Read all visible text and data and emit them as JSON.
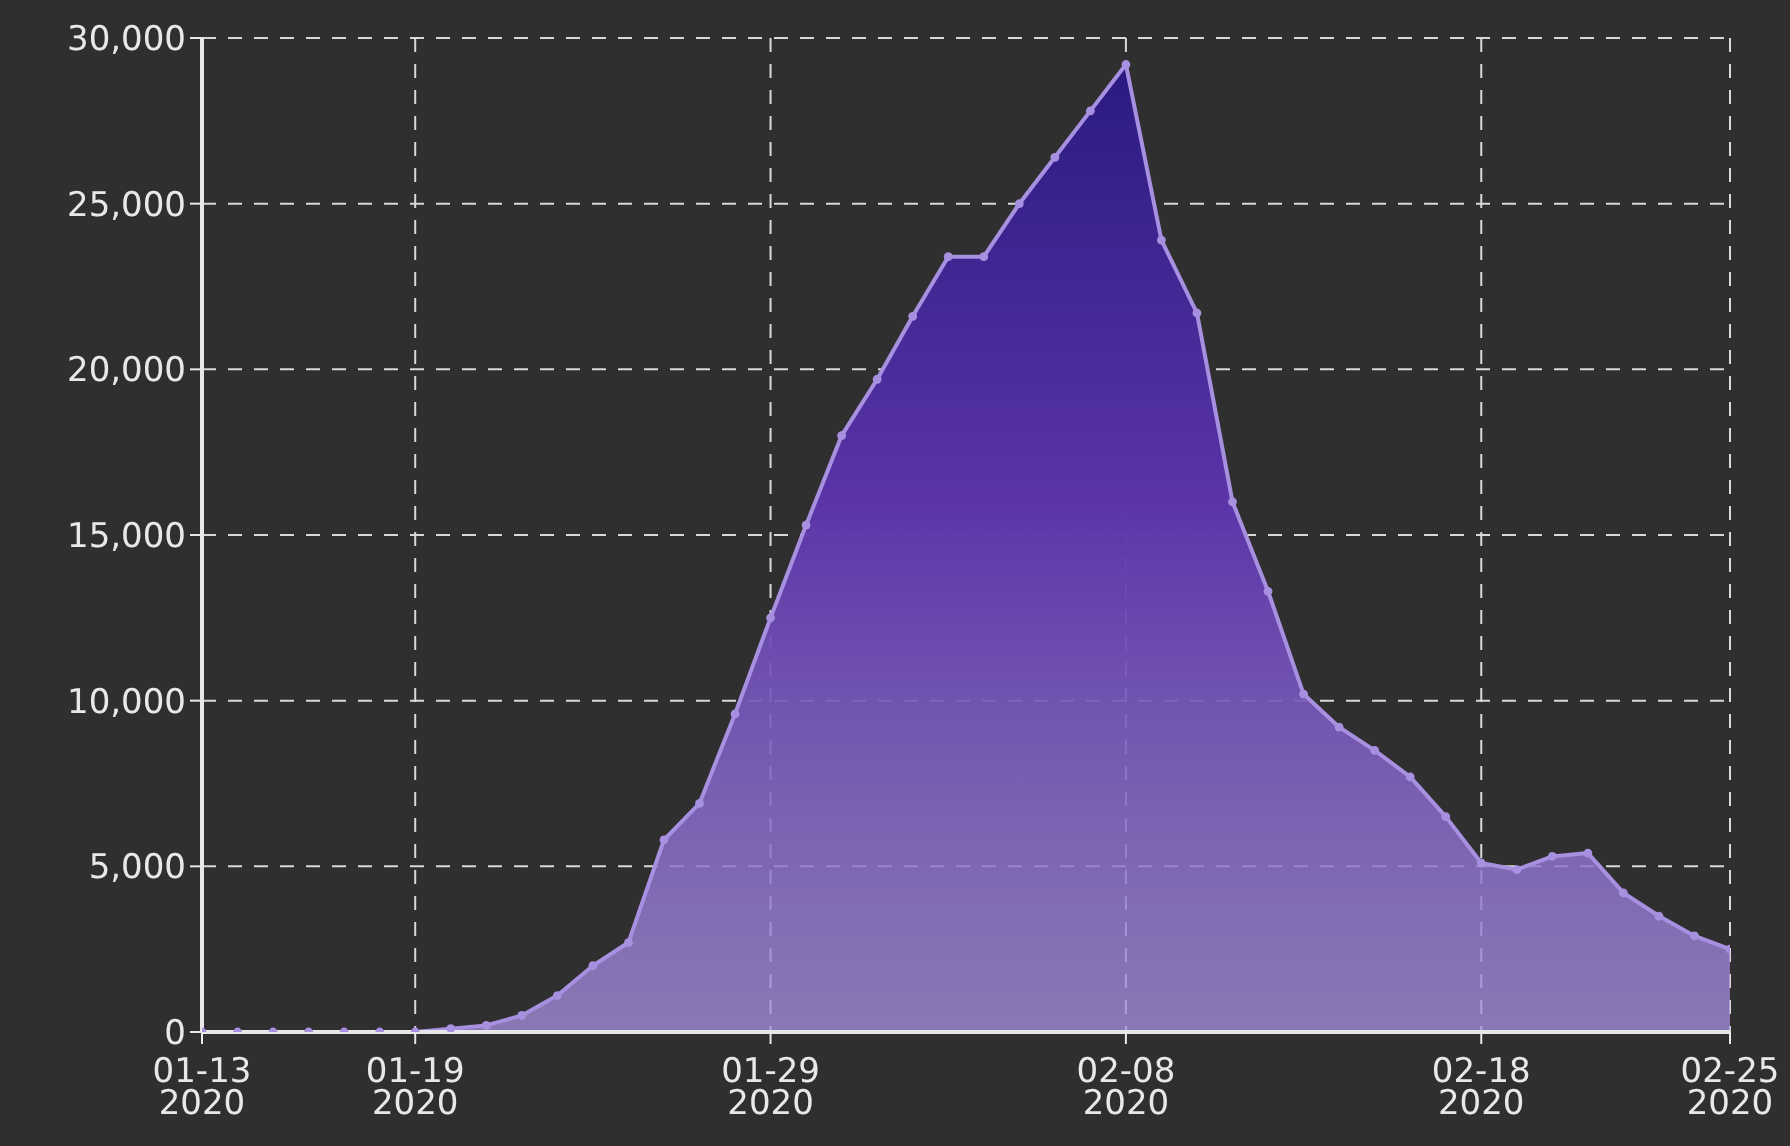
{
  "chart_data": {
    "type": "area",
    "x": [
      "2020-01-13",
      "2020-01-14",
      "2020-01-15",
      "2020-01-16",
      "2020-01-17",
      "2020-01-18",
      "2020-01-19",
      "2020-01-20",
      "2020-01-21",
      "2020-01-22",
      "2020-01-23",
      "2020-01-24",
      "2020-01-25",
      "2020-01-26",
      "2020-01-27",
      "2020-01-28",
      "2020-01-29",
      "2020-01-30",
      "2020-01-31",
      "2020-02-01",
      "2020-02-02",
      "2020-02-03",
      "2020-02-04",
      "2020-02-05",
      "2020-02-06",
      "2020-02-07",
      "2020-02-08",
      "2020-02-09",
      "2020-02-10",
      "2020-02-11",
      "2020-02-12",
      "2020-02-13",
      "2020-02-14",
      "2020-02-15",
      "2020-02-16",
      "2020-02-17",
      "2020-02-18",
      "2020-02-19",
      "2020-02-20",
      "2020-02-21",
      "2020-02-22",
      "2020-02-23",
      "2020-02-24",
      "2020-02-25"
    ],
    "series": [
      {
        "color": "#a890e0",
        "values": [
          0,
          0,
          0,
          0,
          0,
          0,
          0,
          100,
          200,
          500,
          1100,
          2000,
          2700,
          5800,
          6900,
          9600,
          12500,
          15300,
          18000,
          19700,
          21600,
          23400,
          23400,
          25000,
          26400,
          27800,
          29200,
          23900,
          21700,
          16000,
          13300,
          10200,
          9200,
          8500,
          7700,
          6500,
          5100,
          4900,
          5300,
          5400,
          4200,
          3500,
          2900,
          2500
        ]
      }
    ],
    "xlim": [
      "2020-01-13",
      "2020-02-25"
    ],
    "xticks": [
      {
        "value": "2020-01-13",
        "label": "01-13\n2020"
      },
      {
        "value": "2020-01-19",
        "label": "01-19\n2020"
      },
      {
        "value": "2020-01-29",
        "label": "01-29\n2020"
      },
      {
        "value": "2020-02-08",
        "label": "02-08\n2020"
      },
      {
        "value": "2020-02-18",
        "label": "02-18\n2020"
      },
      {
        "value": "2020-02-25",
        "label": "02-25\n2020"
      }
    ],
    "ylim": [
      0,
      30000
    ],
    "yticks": [
      {
        "value": 0,
        "label": "0"
      },
      {
        "value": 5000,
        "label": "5,000"
      },
      {
        "value": 10000,
        "label": "10,000"
      },
      {
        "value": 15000,
        "label": "15,000"
      },
      {
        "value": 20000,
        "label": "20,000"
      },
      {
        "value": 25000,
        "label": "25,000"
      },
      {
        "value": 30000,
        "label": "30,000"
      }
    ],
    "grid": true,
    "marker": "circle",
    "line_style": "solid"
  }
}
